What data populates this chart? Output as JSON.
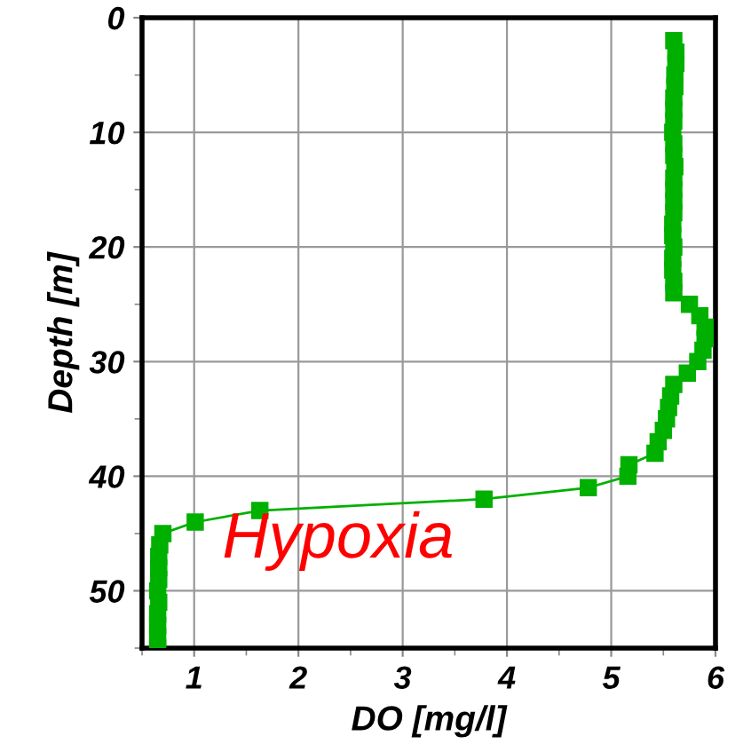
{
  "chart_data": {
    "type": "line",
    "xlabel": "DO [mg/l]",
    "ylabel": "Depth [m]",
    "xlim": [
      0.5,
      6
    ],
    "ylim": [
      55,
      0
    ],
    "xticks": [
      {
        "value": 0.5,
        "label": null
      },
      1,
      {
        "value": 1.5,
        "label": null
      },
      2,
      {
        "value": 2.5,
        "label": null
      },
      3,
      {
        "value": 3.5,
        "label": null
      },
      4,
      {
        "value": 4.5,
        "label": null
      },
      5,
      {
        "value": 5.5,
        "label": null
      },
      6
    ],
    "yticks": [
      0,
      {
        "value": 5,
        "label": null
      },
      10,
      {
        "value": 15,
        "label": null
      },
      20,
      {
        "value": 25,
        "label": null
      },
      30,
      {
        "value": 35,
        "label": null
      },
      40,
      {
        "value": 45,
        "label": null
      },
      50,
      {
        "value": 55,
        "label": null
      }
    ],
    "grid": true,
    "marker": "square",
    "line_style": "solid",
    "series": [
      {
        "color": "#00b000",
        "x": [
          5.6,
          5.62,
          5.62,
          5.61,
          5.61,
          5.6,
          5.6,
          5.6,
          5.59,
          5.6,
          5.6,
          5.61,
          5.6,
          5.6,
          5.6,
          5.6,
          5.59,
          5.59,
          5.6,
          5.59,
          5.59,
          5.6,
          5.6,
          5.75,
          5.85,
          5.9,
          5.9,
          5.88,
          5.83,
          5.73,
          5.6,
          5.57,
          5.55,
          5.53,
          5.5,
          5.45,
          5.42,
          5.17,
          5.16,
          4.78,
          3.78,
          1.63,
          1.01,
          0.7,
          0.67,
          0.66,
          0.66,
          0.66,
          0.65,
          0.66,
          0.65,
          0.65,
          0.65,
          0.65
        ],
        "values": [
          2,
          3,
          4,
          5,
          6,
          7,
          8,
          9,
          10,
          11,
          12,
          13,
          14,
          15,
          16,
          17,
          18,
          19,
          20,
          21,
          22,
          23,
          24,
          25,
          26,
          27,
          28,
          29,
          30,
          31,
          32,
          33,
          34,
          35,
          36,
          37,
          38,
          39,
          40,
          41,
          42,
          43,
          44,
          45,
          46,
          47,
          48,
          49,
          50,
          51,
          52,
          53,
          54,
          55
        ]
      }
    ],
    "annotations": [
      "Hypoxia"
    ]
  }
}
